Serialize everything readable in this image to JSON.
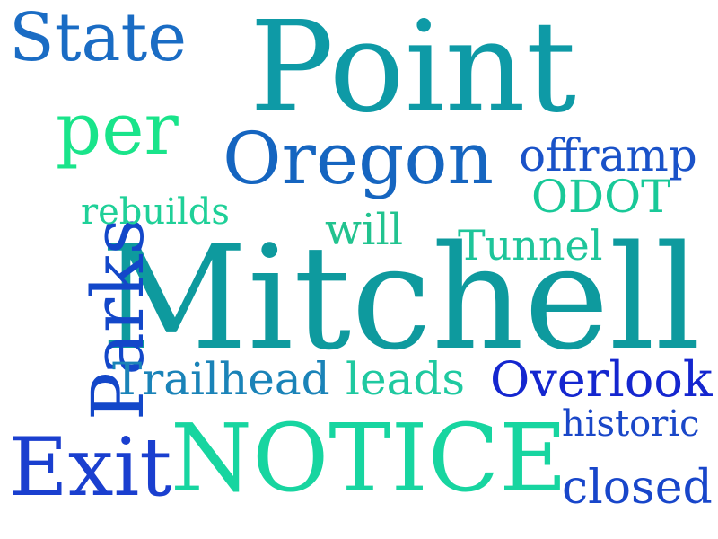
{
  "words": {
    "mitchell": {
      "text": "Mitchell",
      "color": "#0e9a9e"
    },
    "point": {
      "text": "Point",
      "color": "#0e9aa6"
    },
    "notice": {
      "text": "NOTICE",
      "color": "#17d5a0"
    },
    "oregon": {
      "text": "Oregon",
      "color": "#1565c0"
    },
    "parks": {
      "text": "Parks",
      "color": "#1347c9"
    },
    "exit": {
      "text": "Exit",
      "color": "#1a3fcf"
    },
    "state": {
      "text": "State",
      "color": "#1a6cc4"
    },
    "per": {
      "text": "per",
      "color": "#19e48a"
    },
    "offramp": {
      "text": "offramp",
      "color": "#1a52c8"
    },
    "odot": {
      "text": "ODOT",
      "color": "#19c998"
    },
    "rebuilds": {
      "text": "rebuilds",
      "color": "#1fd098"
    },
    "will": {
      "text": "will",
      "color": "#22c38f"
    },
    "tunnel": {
      "text": "Tunnel",
      "color": "#1ec59a"
    },
    "trailhead": {
      "text": "Trailhead",
      "color": "#1a83b8"
    },
    "leads": {
      "text": "leads",
      "color": "#1fc9a0"
    },
    "overlook": {
      "text": "Overlook",
      "color": "#1426cf"
    },
    "historic": {
      "text": "historic",
      "color": "#1a47c8"
    },
    "closed": {
      "text": "closed",
      "color": "#1846ca"
    }
  }
}
